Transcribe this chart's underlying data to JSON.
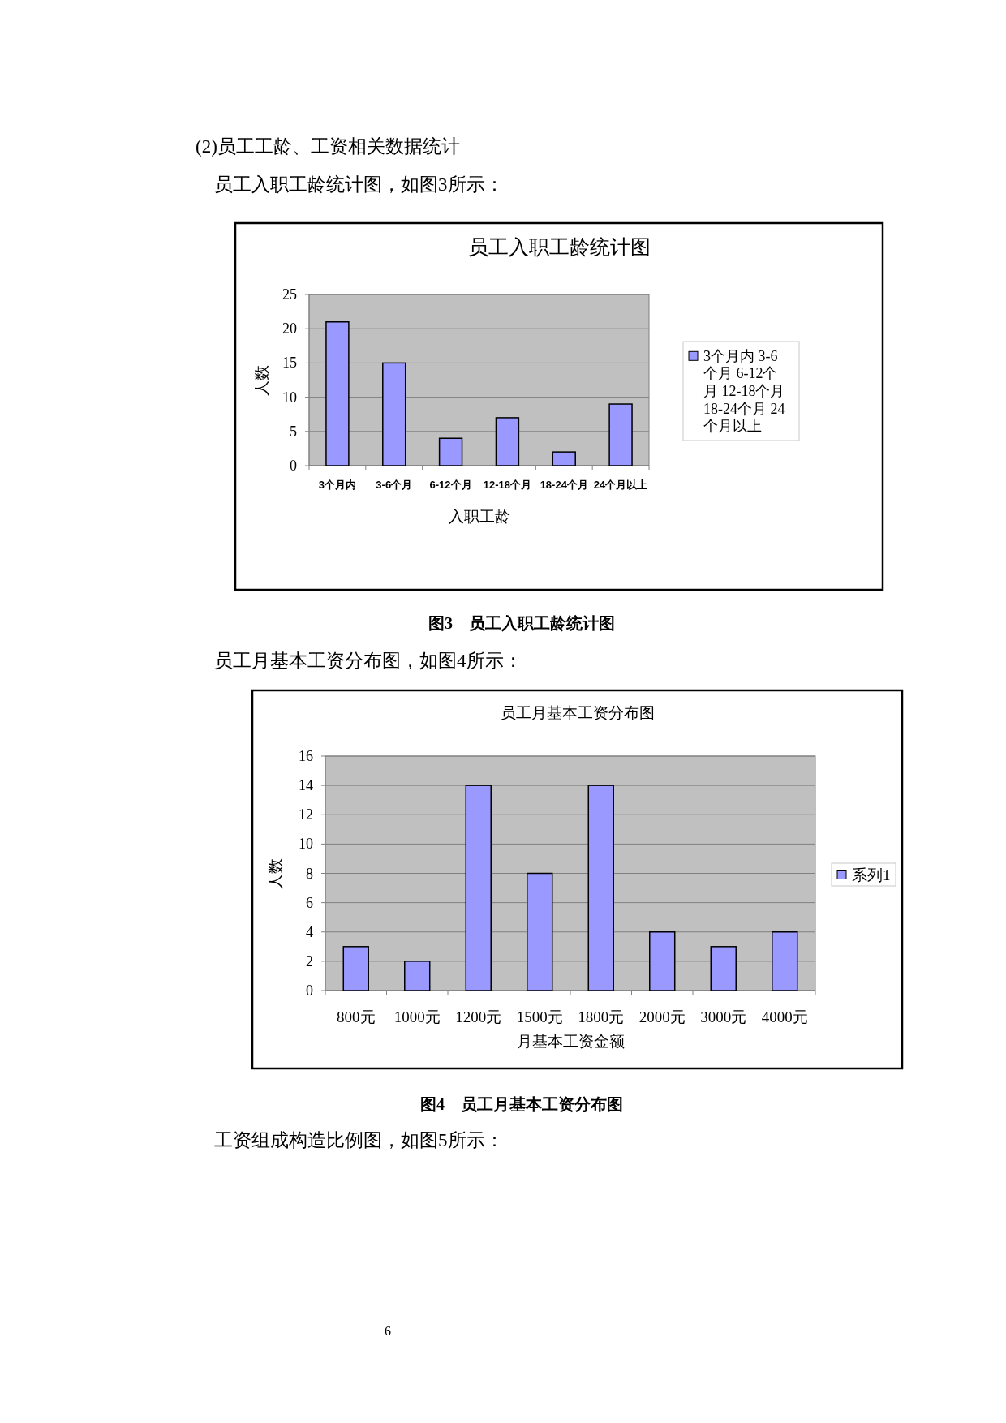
{
  "chart_data": [
    {
      "type": "bar",
      "title": "员工入职工龄统计图",
      "xlabel": "入职工龄",
      "ylabel": "人数",
      "categories": [
        "3个月内",
        "3-6个月",
        "6-12个月",
        "12-18个月",
        "18-24个月",
        "24个月以上"
      ],
      "series": [
        {
          "name": "3个月内 3-6个月 6-12个月 12-18个月 18-24个月 24个月以上",
          "color": "#9999ff",
          "values": [
            21,
            15,
            4,
            7,
            2,
            9
          ]
        }
      ],
      "ylim": [
        0,
        25
      ],
      "yticks": [
        0,
        5,
        10,
        15,
        20,
        25
      ],
      "grid": "y",
      "legend": "right",
      "annotations": [
        "(2)员工工龄、工资相关数据统计",
        "员工入职工龄统计图，如图3所示：",
        "图3　员工入职工龄统计图"
      ]
    },
    {
      "type": "bar",
      "title": "员工月基本工资分布图",
      "xlabel": "月基本工资金额",
      "ylabel": "人数",
      "categories": [
        "800元",
        "1000元",
        "1200元",
        "1500元",
        "1800元",
        "2000元",
        "3000元",
        "4000元"
      ],
      "series": [
        {
          "name": "系列1",
          "color": "#9999ff",
          "values": [
            3,
            2,
            14,
            8,
            14,
            4,
            3,
            4
          ]
        }
      ],
      "ylim": [
        0,
        16
      ],
      "yticks": [
        0,
        2,
        4,
        6,
        8,
        10,
        12,
        14,
        16
      ],
      "grid": "y",
      "legend": "right",
      "annotations": [
        "员工月基本工资分布图，如图4所示：",
        "图4　员工月基本工资分布图",
        "工资组成构造比例图，如图5所示：",
        "6"
      ]
    }
  ]
}
